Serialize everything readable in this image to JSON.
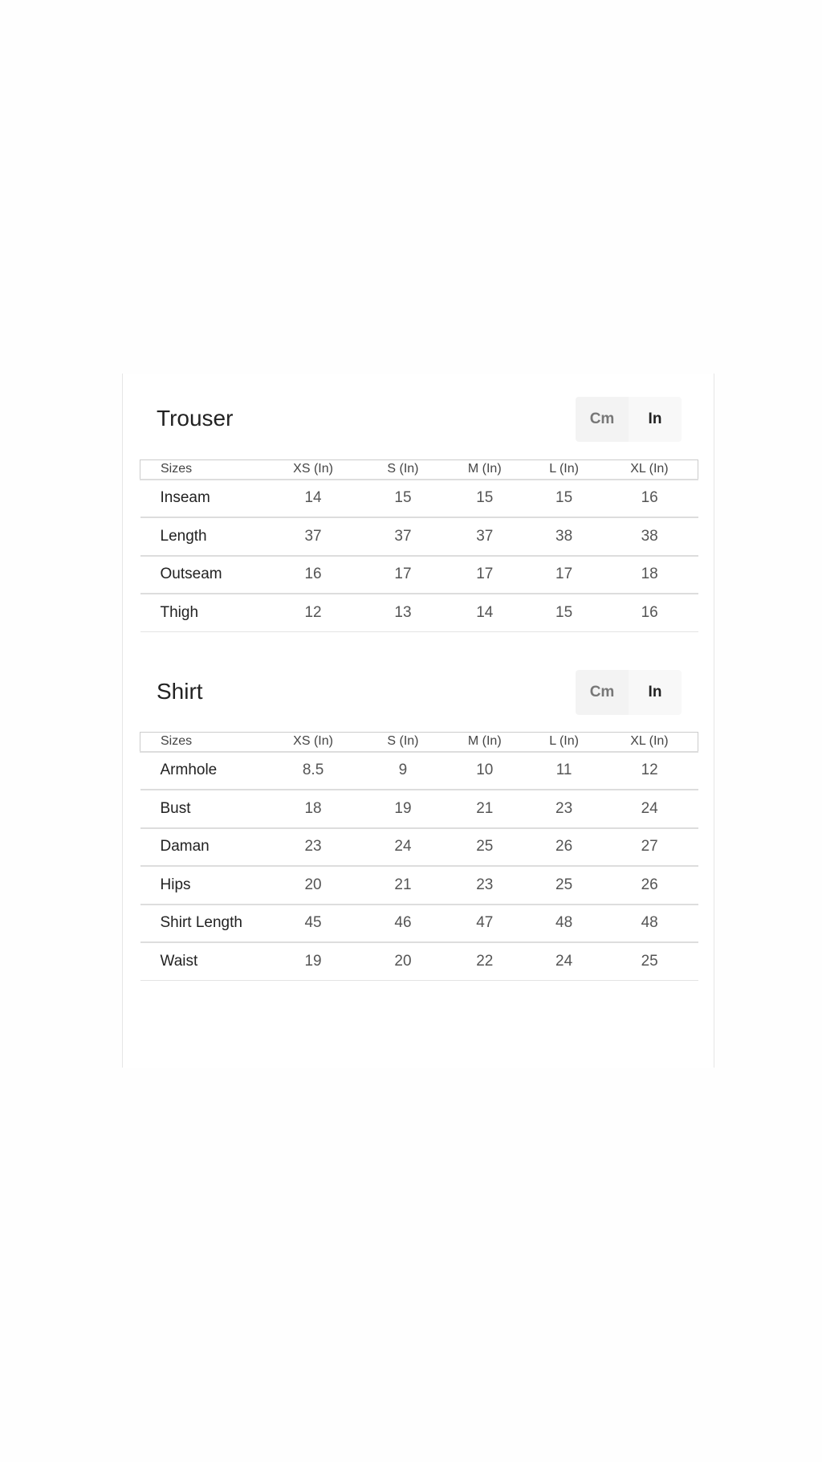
{
  "trouser": {
    "title": "Trouser",
    "toggle": {
      "cm": "Cm",
      "in": "In",
      "selected": "In"
    },
    "headers": [
      "Sizes",
      "XS (In)",
      "S (In)",
      "M (In)",
      "L (In)",
      "XL (In)"
    ],
    "rows": [
      [
        "Inseam",
        "14",
        "15",
        "15",
        "15",
        "16"
      ],
      [
        "Length",
        "37",
        "37",
        "37",
        "38",
        "38"
      ],
      [
        "Outseam",
        "16",
        "17",
        "17",
        "17",
        "18"
      ],
      [
        "Thigh",
        "12",
        "13",
        "14",
        "15",
        "16"
      ]
    ]
  },
  "shirt": {
    "title": "Shirt",
    "toggle": {
      "cm": "Cm",
      "in": "In",
      "selected": "In"
    },
    "headers": [
      "Sizes",
      "XS (In)",
      "S (In)",
      "M (In)",
      "L (In)",
      "XL (In)"
    ],
    "rows": [
      [
        "Armhole",
        "8.5",
        "9",
        "10",
        "11",
        "12"
      ],
      [
        "Bust",
        "18",
        "19",
        "21",
        "23",
        "24"
      ],
      [
        "Daman",
        "23",
        "24",
        "25",
        "26",
        "27"
      ],
      [
        "Hips",
        "20",
        "21",
        "23",
        "25",
        "26"
      ],
      [
        "Shirt Length",
        "45",
        "46",
        "47",
        "48",
        "48"
      ],
      [
        "Waist",
        "19",
        "20",
        "22",
        "24",
        "25"
      ]
    ]
  }
}
